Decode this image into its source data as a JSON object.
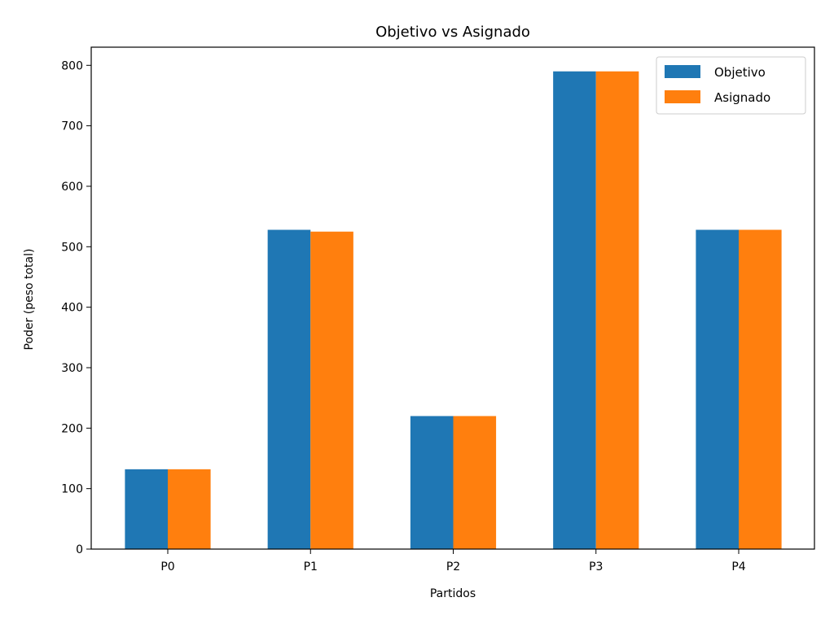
{
  "chart_data": {
    "type": "bar",
    "title": "Objetivo vs Asignado",
    "xlabel": "Partidos",
    "ylabel": "Poder (peso total)",
    "categories": [
      "P0",
      "P1",
      "P2",
      "P3",
      "P4"
    ],
    "series": [
      {
        "name": "Objetivo",
        "color": "#1f77b4",
        "values": [
          132,
          528,
          220,
          790,
          528
        ]
      },
      {
        "name": "Asignado",
        "color": "#ff7f0e",
        "values": [
          132,
          525,
          220,
          790,
          528
        ]
      }
    ],
    "ylim": [
      0,
      830
    ],
    "yticks": [
      0,
      100,
      200,
      300,
      400,
      500,
      600,
      700,
      800
    ],
    "grid": false,
    "legend": "top-right"
  }
}
